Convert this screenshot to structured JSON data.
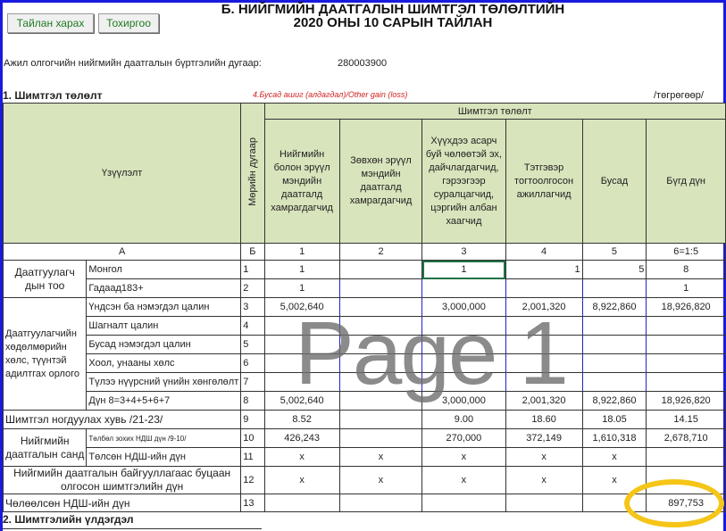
{
  "buttons": {
    "view_report": "Тайлан харах",
    "settings": "Тохиргоо"
  },
  "title": {
    "line1": "Б. НИЙГМИЙН ДААТГАЛЫН ШИМТГЭЛ ТӨЛӨЛТИЙН",
    "line2": "2020 ОНЫ 10 САРЫН ТАЙЛАН"
  },
  "employer": {
    "label": "Ажил олгогчийн нийгмийн даатгалын бүртгэлийн дугаар:",
    "value": "280003900"
  },
  "section1": {
    "title": "1. Шимтгэл төлөлт",
    "note": "4.Бусад ашиг (алдагдал)/Other gain (loss)",
    "unit": "/төгрөгөөр/"
  },
  "header": {
    "indicator": "Үзүүлэлт",
    "rownum": "Мөрийн дугаар",
    "group": "Шимтгэл төлөлт",
    "cols": [
      "Нийгмийн болон эрүүл мэндийн даатгалд хамрагдагчид",
      "Зөвхөн эрүүл мэндийн даатгалд хамрагдагчид",
      "Хүүхдээ асарч буй чөлөөтэй эх, дайчлагдагчид, гэрээгээр суралцагчид, цэргийн албан хаагчид",
      "Тэтгэвэр тогтоолгосон ажиллагчид",
      "Бусад",
      "Бүгд дүн"
    ],
    "codes": [
      "А",
      "Б",
      "1",
      "2",
      "3",
      "4",
      "5",
      "6=1:5"
    ]
  },
  "groups": {
    "insured_count": "Даатгуулагч дын тоо",
    "income": "Даатгуулагчийн хөдөлмөрийн хөлс, түүнтэй адилтгах орлого",
    "fund": "Нийгмийн даатгалын санд"
  },
  "rows": [
    {
      "label": "Монгол",
      "n": "1",
      "v": [
        "1",
        "",
        "1",
        "1",
        "5",
        "8"
      ]
    },
    {
      "label": "Гадаад183+",
      "n": "2",
      "v": [
        "1",
        "",
        "",
        "",
        "",
        "1"
      ]
    },
    {
      "label": "Үндсэн ба нэмэгдэл цалин",
      "n": "3",
      "v": [
        "5,002,640",
        "",
        "3,000,000",
        "2,001,320",
        "8,922,860",
        "18,926,820"
      ]
    },
    {
      "label": "Шагналт цалин",
      "n": "4",
      "v": [
        "",
        "",
        "",
        "",
        "",
        ""
      ]
    },
    {
      "label": "Бусад нэмэгдэл цалин",
      "n": "5",
      "v": [
        "",
        "",
        "",
        "",
        "",
        ""
      ]
    },
    {
      "label": "Хоол, унааны хөлс",
      "n": "6",
      "v": [
        "",
        "",
        "",
        "",
        "",
        ""
      ]
    },
    {
      "label": "Түлээ нүүрсний үнийн хөнгөлөлт",
      "n": "7",
      "v": [
        "",
        "",
        "",
        "",
        "",
        ""
      ]
    },
    {
      "label": "Дүн 8=3+4+5+6+7",
      "n": "8",
      "v": [
        "5,002,640",
        "",
        "3,000,000",
        "2,001,320",
        "8,922,860",
        "18,926,820"
      ]
    },
    {
      "label": "Шимтгэл ногдуулах хувь /21-23/",
      "n": "9",
      "v": [
        "8.52",
        "",
        "9.00",
        "18.60",
        "18.05",
        "14.15"
      ]
    },
    {
      "label": "Төлбөл зохих НДШ дүн /9-10/",
      "n": "10",
      "v": [
        "426,243",
        "",
        "270,000",
        "372,149",
        "1,610,318",
        "2,678,710"
      ]
    },
    {
      "label": "Төлсөн НДШ-ийн дүн",
      "n": "11",
      "v": [
        "x",
        "x",
        "x",
        "x",
        "x",
        ""
      ]
    },
    {
      "label": "Нийгмийн даатгалын байгууллагаас буцаан олгосон шимтгэлийн дүн",
      "n": "12",
      "v": [
        "x",
        "x",
        "x",
        "x",
        "x",
        ""
      ]
    },
    {
      "label": "Чөлөөлсөн НДШ-ийн дүн",
      "n": "13",
      "v": [
        "",
        "",
        "",
        "",
        "",
        "897,753"
      ]
    }
  ],
  "section2": {
    "title": "2. Шимтгэлийн үлдэгдэл"
  },
  "watermark": "Page 1",
  "colors": {
    "header_bg": "#d8e4bc",
    "frame": "#1a1adf",
    "highlight": "#f5c518"
  }
}
